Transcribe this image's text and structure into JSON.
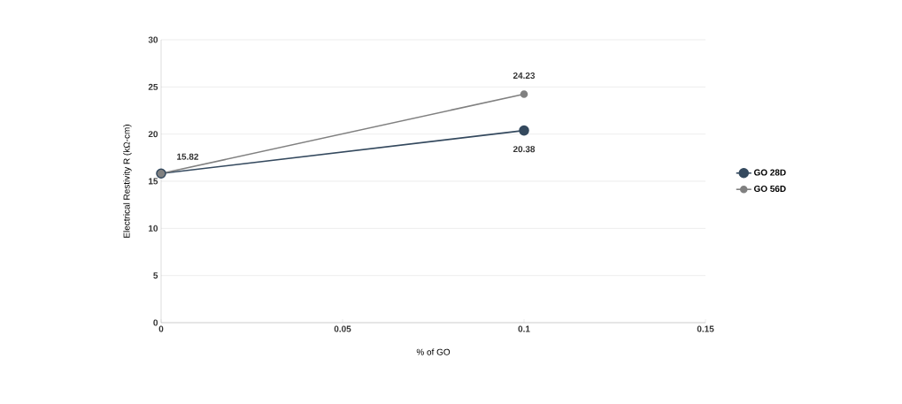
{
  "chart_data": {
    "type": "line",
    "xlabel": "% of GO",
    "ylabel": "Electrical Restivity R (kΩ-cm)",
    "x": [
      0,
      0.1
    ],
    "series": [
      {
        "name": "GO 28D",
        "color": "#34495e",
        "values": [
          15.82,
          20.38
        ],
        "value_labels": [
          null,
          "20.38"
        ]
      },
      {
        "name": "GO 56D",
        "color": "#808080",
        "values": [
          15.82,
          24.23
        ],
        "value_labels": [
          "15.82",
          "24.23"
        ]
      }
    ],
    "xlim": [
      0,
      0.15
    ],
    "xticks": [
      0,
      0.05,
      0.1,
      0.15
    ],
    "ylim": [
      0,
      30
    ],
    "yticks": [
      0,
      5,
      10,
      15,
      20,
      25,
      30
    ],
    "grid": "y",
    "legend": "right",
    "marker": "circle",
    "line_style": "solid"
  }
}
